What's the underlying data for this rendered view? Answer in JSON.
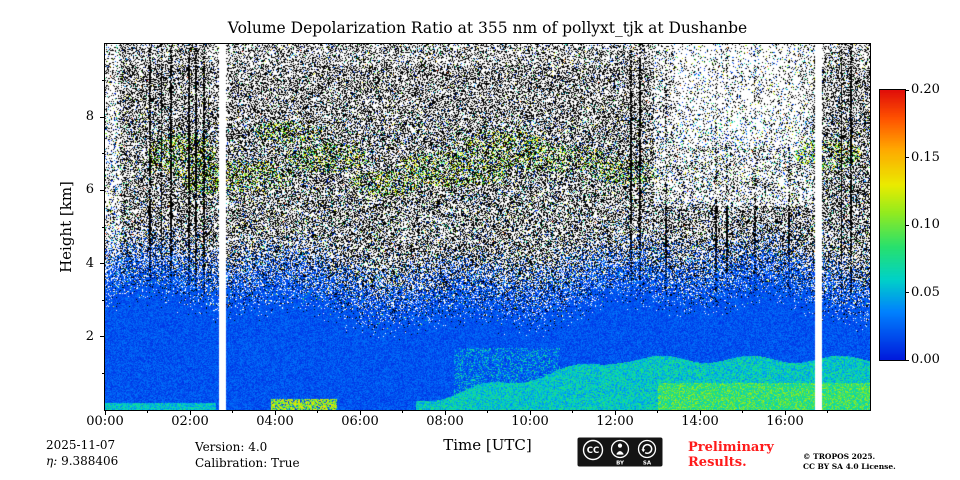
{
  "chart_data": {
    "type": "heatmap",
    "title": "Volume Depolarization Ratio at 355 nm of pollyxt_tjk at Dushanbe",
    "xlabel": "Time [UTC]",
    "ylabel": "Height [km]",
    "x_range_hours": [
      0,
      18
    ],
    "x_tick_hours": [
      0,
      2,
      4,
      6,
      8,
      10,
      12,
      14,
      16
    ],
    "x_tick_labels": [
      "00:00",
      "02:00",
      "04:00",
      "06:00",
      "08:00",
      "10:00",
      "12:00",
      "14:00",
      "16:00"
    ],
    "x_minor_tick_hours": [
      1,
      3,
      5,
      7,
      9,
      11,
      13,
      15,
      17
    ],
    "y_range_km": [
      0,
      10
    ],
    "y_tick_km": [
      2,
      4,
      6,
      8
    ],
    "y_tick_labels": [
      "2",
      "4",
      "6",
      "8"
    ],
    "y_minor_tick_km": [
      1,
      3,
      5,
      7,
      9
    ],
    "colorbar": {
      "min": 0.0,
      "max": 0.2,
      "tick_values": [
        0.0,
        0.05,
        0.1,
        0.15,
        0.2
      ],
      "tick_labels": [
        "0.00",
        "0.05",
        "0.10",
        "0.15",
        "0.20"
      ]
    },
    "colormap_stops": [
      [
        0.0,
        0,
        25,
        220
      ],
      [
        0.18,
        0,
        130,
        255
      ],
      [
        0.3,
        0,
        210,
        200
      ],
      [
        0.42,
        40,
        225,
        110
      ],
      [
        0.55,
        150,
        235,
        30
      ],
      [
        0.65,
        235,
        235,
        0
      ],
      [
        0.78,
        255,
        170,
        0
      ],
      [
        0.9,
        255,
        80,
        0
      ],
      [
        1.0,
        225,
        15,
        10
      ]
    ],
    "data_gaps_hours": [
      [
        2.66,
        2.84
      ],
      [
        16.7,
        16.87
      ]
    ],
    "features": {
      "boundary_layer": "low depolarization (~0.01, blue) from surface up to ~2.5-3.3 km all day",
      "elevated_green_layer": "depol ~0.04-0.09 (green) below ~1.4 km from 08:00 onwards, brightest after 13:00",
      "surface_yellow_streak": "depol ~0.10 (yellow) near surface between 04:00 and 05:30",
      "noise_region": "salt-and-pepper molecular shot noise above ~3 km with sparse colored speckle",
      "cirrus_streaks": "faint yellowish streaks around 6-7.5 km between 02:00 and 12:00",
      "dark_columns": "thin dark vertical stripes near 01:00-02:30, 12:20-13:15, 14:20-16:10, 17:20-17:35"
    }
  },
  "footer": {
    "date": "2025-11-07",
    "eta_label": "η:",
    "eta_value": "9.388406",
    "version": "Version: 4.0",
    "calibration": "Calibration: True",
    "preliminary_l1": "Preliminary",
    "preliminary_l2": "Results.",
    "preliminary_color": "#ff1a1a",
    "copyright": "© TROPOS 2025.",
    "license": "CC BY SA 4.0 License.",
    "cc_badge": {
      "icons": [
        "cc-icon",
        "cc-by-person-icon",
        "cc-sa-icon"
      ],
      "labels": [
        "BY",
        "SA"
      ],
      "cc_text": "CC"
    }
  }
}
